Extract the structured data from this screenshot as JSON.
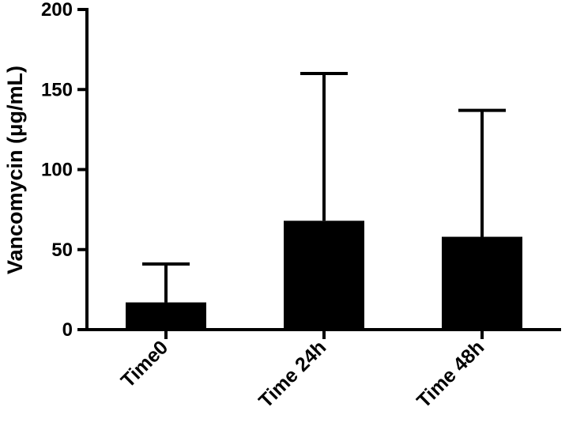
{
  "chart_data": {
    "type": "bar",
    "categories": [
      "Time0",
      "Time 24h",
      "Time 48h"
    ],
    "values": [
      17,
      68,
      58
    ],
    "error_upper": [
      41,
      160,
      137
    ],
    "ylabel": "Vancomycin (μg/mL)",
    "xlabel": "",
    "ylim": [
      0,
      200
    ],
    "yticks": [
      "0",
      "50",
      "100",
      "150",
      "200"
    ],
    "bar_color": "#000000",
    "grid": false,
    "legend": "none"
  }
}
